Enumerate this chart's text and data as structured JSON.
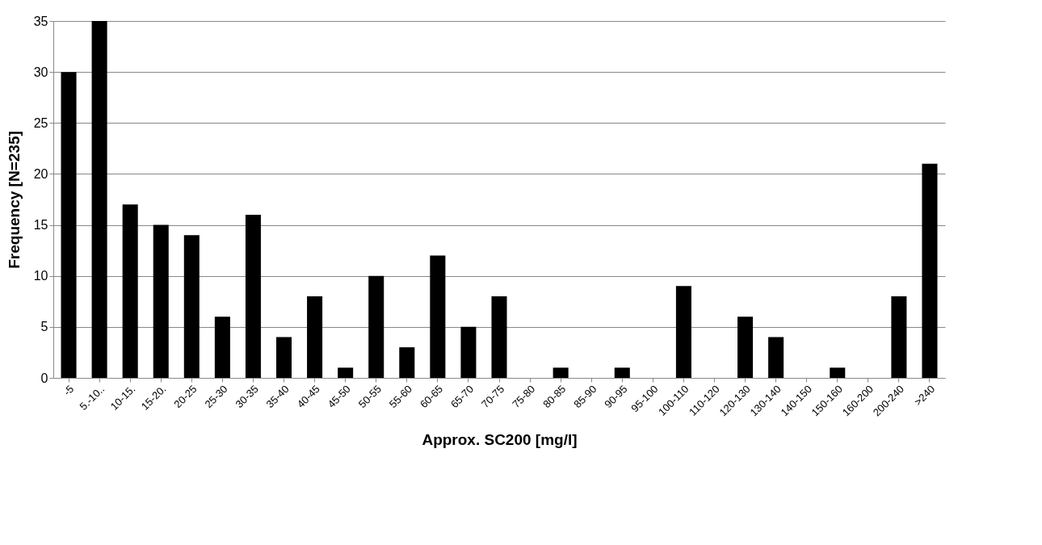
{
  "chart_data": {
    "type": "bar",
    "xlabel": "Approx. SC200 [mg/l]",
    "ylabel": "Frequency [N=235]",
    "categories": [
      "-5",
      "5.-10..",
      "10-15.",
      "15-20.",
      "20-25",
      "25-30",
      "30-35",
      "35-40",
      "40-45",
      "45-50",
      "50-55",
      "55-60",
      "60-65",
      "65-70",
      "70-75",
      "75-80",
      "80-85",
      "85-90",
      "90-95",
      "95-100",
      "100-110",
      "110-120",
      "120-130",
      "130-140",
      "140-150",
      "150-160",
      "160-200",
      "200-240",
      ">240"
    ],
    "values": [
      30,
      35,
      17,
      15,
      14,
      6,
      16,
      4,
      8,
      1,
      10,
      3,
      12,
      5,
      8,
      0,
      1,
      0,
      1,
      0,
      9,
      0,
      6,
      4,
      0,
      1,
      0,
      8,
      21
    ],
    "color": "#000000",
    "ylim": [
      0,
      35
    ],
    "yticks": [
      0,
      5,
      10,
      15,
      20,
      25,
      30,
      35
    ],
    "grid": "y"
  }
}
